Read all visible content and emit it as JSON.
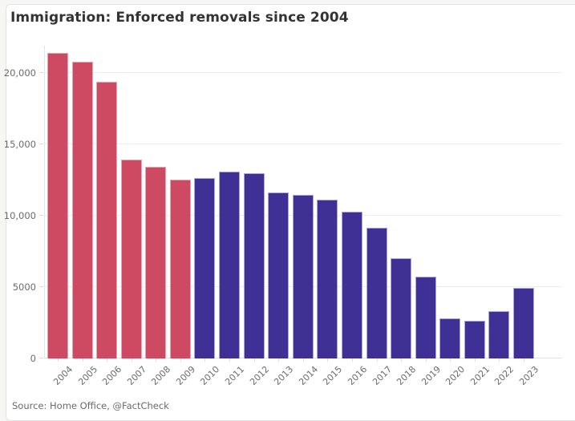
{
  "header": {
    "title": "Immigration: Enforced removals since 2004"
  },
  "footer": {
    "source": "Source: Home Office, @FactCheck"
  },
  "chart_data": {
    "type": "bar",
    "title": "Immigration: Enforced removals since 2004",
    "categories": [
      "2004",
      "2005",
      "2006",
      "2007",
      "2008",
      "2009",
      "2010",
      "2011",
      "2012",
      "2013",
      "2014",
      "2015",
      "2016",
      "2017",
      "2018",
      "2019",
      "2020",
      "2021",
      "2022",
      "2023"
    ],
    "values": [
      21400,
      20800,
      19350,
      13900,
      13400,
      12500,
      12650,
      13100,
      13000,
      11650,
      11450,
      11100,
      10250,
      9150,
      7000,
      5750,
      2800,
      2650,
      3300,
      4950
    ],
    "bar_color_groups": [
      "red",
      "red",
      "red",
      "red",
      "red",
      "red",
      "blue",
      "blue",
      "blue",
      "blue",
      "blue",
      "blue",
      "blue",
      "blue",
      "blue",
      "blue",
      "blue",
      "blue",
      "blue",
      "blue"
    ],
    "palette": {
      "red": {
        "fill": "#ce4a63",
        "stroke": "#e3a6b3"
      },
      "blue": {
        "fill": "#3e3095",
        "stroke": "#aea6da"
      }
    },
    "xlabel": "",
    "ylabel": "",
    "ylim": [
      0,
      21900
    ],
    "y_ticks": [
      {
        "label": "0",
        "value": 0
      },
      {
        "label": "5000",
        "value": 5000
      },
      {
        "label": "10,000",
        "value": 10000
      },
      {
        "label": "15,000",
        "value": 15000
      },
      {
        "label": "20,000",
        "value": 20000
      }
    ],
    "grid": "horizontal",
    "legend": "none",
    "x_label_rotation": -45
  }
}
